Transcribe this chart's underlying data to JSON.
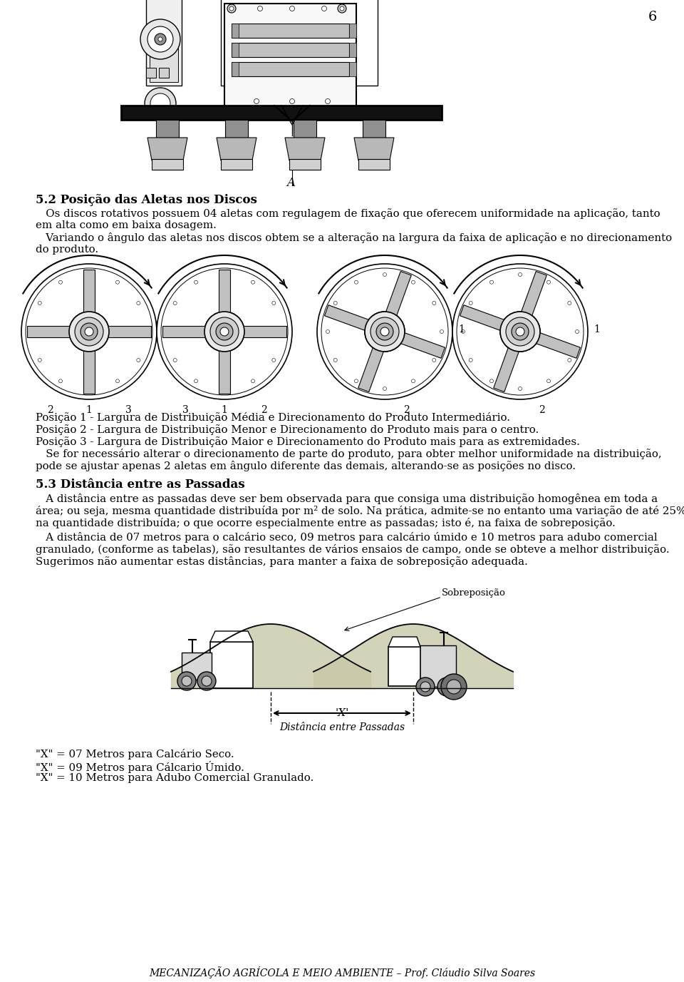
{
  "page_number": "6",
  "bg": "#ffffff",
  "title_52": "5.2 Posição das Aletas nos Discos",
  "p52_1a": "   Os discos rotativos possuem 04 aletas com regulagem de fixação que oferecem uniformidade na aplicação, tanto",
  "p52_1b": "em alta como em baixa dosagem.",
  "p52_2a": "   Variando o ângulo das aletas nos discos obtem se a alteração na largura da faixa de aplicação e no direcionamento",
  "p52_2b": "do produto.",
  "label_A": "A",
  "pos1": "Posição 1 - Largura de Distribuição Média e Direcionamento do Produto Intermediário.",
  "pos2": "Posição 2 - Largura de Distribuição Menor e Direcionamento do Produto mais para o centro.",
  "pos3": "Posição 3 - Largura de Distribuição Maior e Direcionamento do Produto mais para as extremidades.",
  "adj1": "   Se for necessário alterar o direcionamento de parte do produto, para obter melhor uniformidade na distribuição,",
  "adj2": "pode se ajustar apenas 2 aletas em ângulo diferente das demais, alterando-se as posições no disco.",
  "title_53": "5.3 Distância entre as Passadas",
  "p53_1a": "   A distância entre as passadas deve ser bem observada para que consiga uma distribuição homogênea em toda a",
  "p53_1b": "área; ou seja, mesma quantidade distribuída por m² de solo. Na prática, admite-se no entanto uma variação de até 25%",
  "p53_1c": "na quantidade distribuída; o que ocorre especialmente entre as passadas; isto é, na faixa de sobreposição.",
  "p53_2a": "   A distância de 07 metros para o calcário seco, 09 metros para calcário úmido e 10 metros para adubo comercial",
  "p53_2b": "granulado, (conforme as tabelas), são resultantes de vários ensaios de campo, onde se obteve a melhor distribuição.",
  "p53_2c": "Sugerimos não aumentar estas distâncias, para manter a faixa de sobreposição adequada.",
  "x07": "\"X\" = 07 Metros para Calcário Seco.",
  "x09": "\"X\" = 09 Metros para Cálcario Úmido.",
  "x10": "\"X\" = 10 Metros para Adubo Comercial Granulado.",
  "footer": "MECANIZAÇÃO AGRÍCOLA E MEIO AMBIENTE – Prof. Cláudio Silva Soares",
  "label_sob": "Sobreposição",
  "label_X": "'X'",
  "label_dist": "Distância entre Passadas",
  "disc_labels_1": [
    "2",
    "1",
    "3"
  ],
  "disc_labels_2": [
    "3",
    "1",
    "2"
  ],
  "disc_label_3_top": "1",
  "disc_label_3_bot": "2",
  "disc_label_4_top": "1",
  "disc_label_4_bot": "2"
}
